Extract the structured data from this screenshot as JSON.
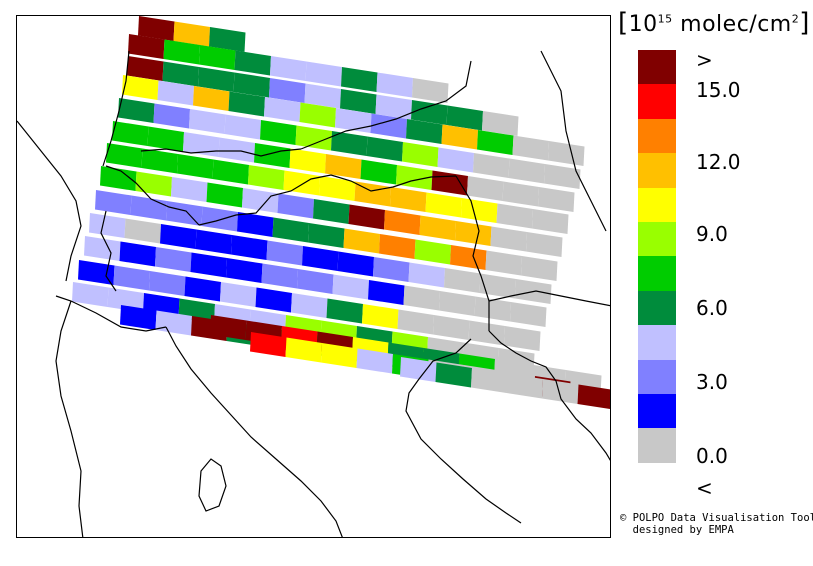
{
  "legend": {
    "unit_open": "[",
    "unit_base": "10",
    "unit_exp": "15",
    "unit_text": " molec/cm",
    "unit_sq": "2",
    "unit_close": "]",
    "colors": [
      "#c8c8c8",
      "#0000ff",
      "#8080ff",
      "#c0c0ff",
      "#008c3c",
      "#00cc00",
      "#99ff00",
      "#ffff00",
      "#ffc000",
      "#ff8000",
      "#ff0000",
      "#800000"
    ],
    "tick_labels": [
      ">",
      "15.0",
      "12.0",
      "9.0",
      "6.0",
      "3.0",
      "0.0",
      "<"
    ]
  },
  "credit": {
    "line1": "© POLPO Data Visualisation Tool",
    "line2": "  designed by EMPA"
  },
  "swaths": [
    {
      "x0": 138,
      "y0": 15,
      "cells": [
        11,
        8,
        4
      ]
    },
    {
      "x0": 128,
      "y0": 33,
      "cells": [
        11,
        5,
        5,
        4,
        3,
        3,
        4,
        3,
        0
      ]
    },
    {
      "x0": 127,
      "y0": 55,
      "cells": [
        11,
        4,
        4,
        4,
        2,
        3,
        4,
        3,
        4,
        4,
        0
      ]
    },
    {
      "x0": 122,
      "y0": 74,
      "cells": [
        7,
        3,
        8,
        4,
        3,
        6,
        3,
        2,
        4,
        8,
        5,
        0,
        0
      ]
    },
    {
      "x0": 118,
      "y0": 97,
      "cells": [
        4,
        2,
        3,
        3,
        5,
        6,
        4,
        4,
        6,
        3,
        0,
        0,
        0
      ]
    },
    {
      "x0": 112,
      "y0": 120,
      "cells": [
        5,
        5,
        3,
        3,
        5,
        7,
        8,
        5,
        6,
        11,
        0,
        0,
        0
      ]
    },
    {
      "x0": 106,
      "y0": 142,
      "cells": [
        5,
        5,
        5,
        5,
        6,
        7,
        7,
        8,
        8,
        7,
        7,
        0,
        0
      ]
    },
    {
      "x0": 100,
      "y0": 165,
      "cells": [
        5,
        6,
        3,
        5,
        3,
        2,
        4,
        11,
        9,
        8,
        8,
        0,
        0
      ]
    },
    {
      "x0": 95,
      "y0": 189,
      "cells": [
        2,
        2,
        2,
        2,
        1,
        4,
        4,
        8,
        9,
        6,
        9,
        0,
        0
      ]
    },
    {
      "x0": 89,
      "y0": 212,
      "cells": [
        3,
        0,
        1,
        1,
        1,
        2,
        1,
        1,
        2,
        3,
        0,
        0,
        0
      ]
    },
    {
      "x0": 84,
      "y0": 235,
      "cells": [
        3,
        1,
        2,
        1,
        1,
        2,
        2,
        3,
        1,
        0,
        0,
        0,
        0
      ]
    },
    {
      "x0": 78,
      "y0": 259,
      "cells": [
        1,
        2,
        2,
        1,
        3,
        1,
        3,
        4,
        7,
        0,
        0,
        0,
        0
      ]
    },
    {
      "x0": 72,
      "y0": 281,
      "cells": [
        3,
        3,
        1,
        4,
        3,
        3,
        6,
        6,
        4,
        6,
        0,
        0,
        0
      ]
    },
    {
      "x0": 120,
      "y0": 304,
      "cells": [
        1,
        3,
        11,
        4,
        5,
        5,
        6,
        4,
        4,
        5,
        0,
        0
      ]
    },
    {
      "x0": 210,
      "y0": 314,
      "cells": [
        11,
        11,
        10,
        11,
        7,
        4,
        4,
        5,
        0,
        0,
        0
      ]
    },
    {
      "x0": 250,
      "y0": 331,
      "cells": [
        10,
        7,
        7,
        3,
        5,
        0,
        0,
        0,
        11
      ]
    },
    {
      "x0": 400,
      "y0": 356,
      "cells": [
        3,
        4,
        0,
        0,
        0,
        11
      ]
    }
  ]
}
